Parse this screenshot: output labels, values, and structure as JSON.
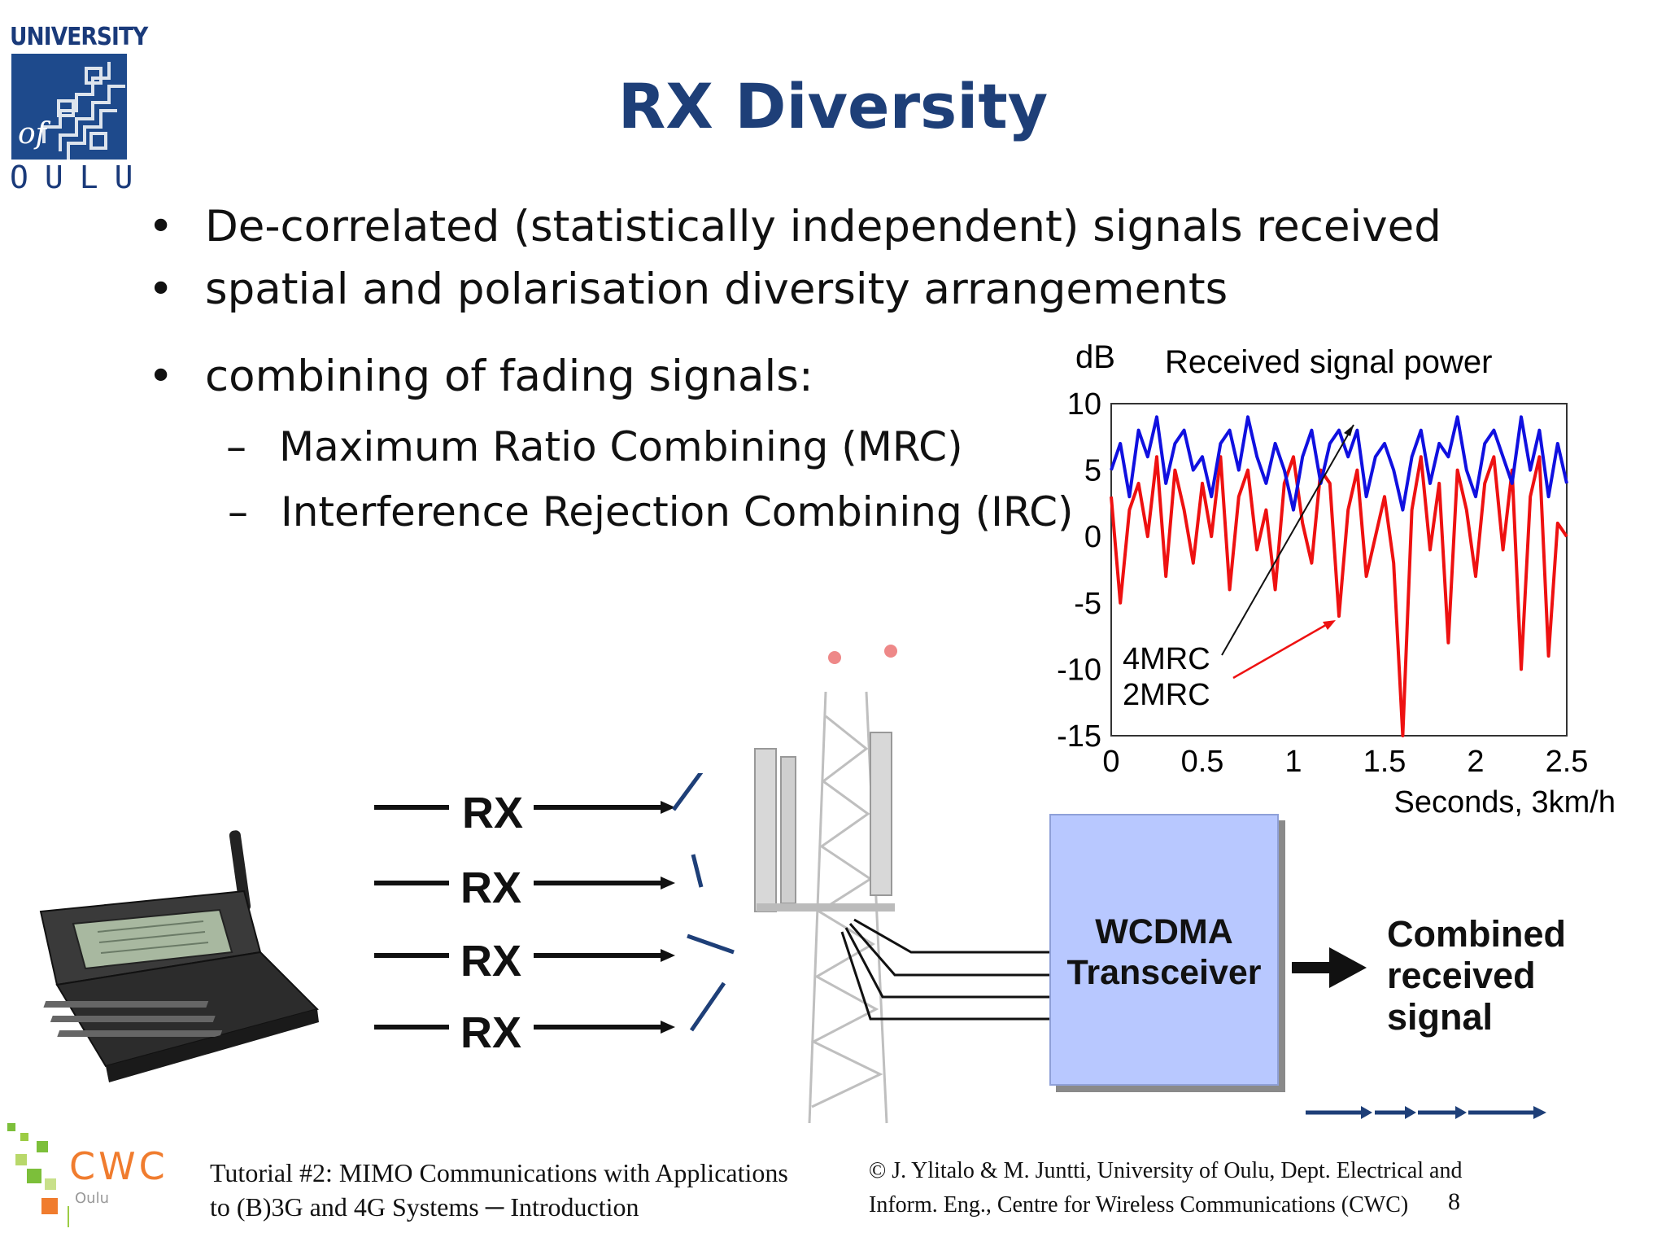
{
  "logo": {
    "top_text": "UNIVERSITY",
    "middle_text": "of",
    "bottom_text": "OULU"
  },
  "title": "RX Diversity",
  "bullets": [
    "De-correlated (statistically independent) signals received",
    "spatial and polarisation diversity arrangements",
    "combining of fading signals:"
  ],
  "sub_bullets": [
    "Maximum Ratio Combining (MRC)",
    "Interference Rejection Combining (IRC)"
  ],
  "bullet_symbol": "•",
  "dash_symbol": "–",
  "chart_data": {
    "type": "line",
    "title": "Received signal power",
    "ylabel": "dB",
    "xlabel": "Seconds, 3km/h",
    "xlim": [
      0,
      2.5
    ],
    "ylim": [
      -15,
      10
    ],
    "xticks": [
      "0",
      "0.5",
      "1",
      "1.5",
      "2",
      "2.5"
    ],
    "yticks": [
      "10",
      "5",
      "0",
      "-5",
      "-10",
      "-15"
    ],
    "series": [
      {
        "name": "4MRC",
        "color": "#1010e0",
        "x": [
          0,
          0.05,
          0.1,
          0.15,
          0.2,
          0.25,
          0.3,
          0.35,
          0.4,
          0.45,
          0.5,
          0.55,
          0.6,
          0.65,
          0.7,
          0.75,
          0.8,
          0.85,
          0.9,
          0.95,
          1.0,
          1.05,
          1.1,
          1.15,
          1.2,
          1.25,
          1.3,
          1.35,
          1.4,
          1.45,
          1.5,
          1.55,
          1.6,
          1.65,
          1.7,
          1.75,
          1.8,
          1.85,
          1.9,
          1.95,
          2.0,
          2.05,
          2.1,
          2.15,
          2.2,
          2.25,
          2.3,
          2.35,
          2.4,
          2.45,
          2.5
        ],
        "y": [
          5,
          7,
          3,
          8,
          6,
          9,
          4,
          7,
          8,
          5,
          6,
          3,
          7,
          8,
          5,
          9,
          6,
          4,
          7,
          5,
          2,
          6,
          8,
          4,
          7,
          8,
          6,
          8,
          3,
          6,
          7,
          5,
          2,
          6,
          8,
          4,
          7,
          6,
          9,
          5,
          3,
          7,
          8,
          6,
          4,
          9,
          5,
          8,
          3,
          7,
          4
        ]
      },
      {
        "name": "2MRC",
        "color": "#ee1111",
        "x": [
          0,
          0.05,
          0.1,
          0.15,
          0.2,
          0.25,
          0.3,
          0.35,
          0.4,
          0.45,
          0.5,
          0.55,
          0.6,
          0.65,
          0.7,
          0.75,
          0.8,
          0.85,
          0.9,
          0.95,
          1.0,
          1.05,
          1.1,
          1.15,
          1.2,
          1.25,
          1.3,
          1.35,
          1.4,
          1.45,
          1.5,
          1.55,
          1.6,
          1.65,
          1.7,
          1.75,
          1.8,
          1.85,
          1.9,
          1.95,
          2.0,
          2.05,
          2.1,
          2.15,
          2.2,
          2.25,
          2.3,
          2.35,
          2.4,
          2.45,
          2.5
        ],
        "y": [
          3,
          -5,
          2,
          4,
          0,
          6,
          -3,
          5,
          2,
          -2,
          4,
          0,
          6,
          -4,
          3,
          5,
          -1,
          2,
          -4,
          4,
          6,
          1,
          -2,
          5,
          4,
          -6,
          2,
          5,
          -3,
          0,
          3,
          -2,
          -15,
          2,
          6,
          -1,
          4,
          -8,
          5,
          2,
          -3,
          4,
          6,
          -1,
          5,
          -10,
          3,
          6,
          -9,
          1,
          0
        ]
      }
    ],
    "annotations": [
      "4MRC",
      "2MRC"
    ],
    "legend": "none",
    "grid": false
  },
  "diagram": {
    "rx_labels": [
      "RX",
      "RX",
      "RX",
      "RX"
    ],
    "transceiver_lines": [
      "WCDMA",
      "Transceiver"
    ],
    "output_lines": [
      "Combined",
      "received",
      "signal"
    ]
  },
  "footer": {
    "left_lines": [
      "Tutorial #2: MIMO Communications with Applications",
      "to (B)3G and 4G Systems ─ Introduction"
    ],
    "right_lines": [
      "© J. Ylitalo & M. Juntti, University of Oulu, Dept. Electrical and",
      "Inform. Eng., Centre for Wireless Communications (CWC)"
    ],
    "page_number": "8",
    "cwc_logo_text": "CWC",
    "cwc_logo_sub": "Oulu"
  }
}
